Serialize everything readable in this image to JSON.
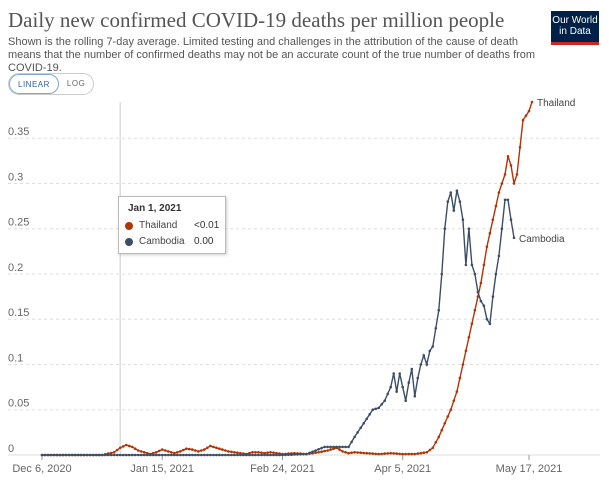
{
  "header": {
    "title": "Daily new confirmed COVID-19 deaths per million people",
    "subtitle": "Shown is the rolling 7-day average. Limited testing and challenges in the attribution of the cause of death means that the number of confirmed deaths may not be an accurate count of the true number of deaths from COVID-19.",
    "logo_line1": "Our World",
    "logo_line2": "in Data"
  },
  "scale_toggle": {
    "linear": "LINEAR",
    "log": "LOG",
    "selected": "LINEAR"
  },
  "tooltip": {
    "date": "Jan 1, 2021",
    "rows": [
      {
        "name": "Thailand",
        "value": "<0.01",
        "color": "#b13507"
      },
      {
        "name": "Cambodia",
        "value": "0.00",
        "color": "#3c4e66"
      }
    ]
  },
  "chart_data": {
    "type": "line",
    "title": "Daily new confirmed COVID-19 deaths per million people",
    "ylim": [
      0,
      0.39
    ],
    "yticks": [
      0,
      0.05,
      0.1,
      0.15,
      0.2,
      0.25,
      0.3,
      0.35
    ],
    "xtick_labels": [
      "Dec 6, 2020",
      "Jan 15, 2021",
      "Feb 24, 2021",
      "Apr 5, 2021",
      "May 17, 2021"
    ],
    "xtick_days": [
      0,
      40,
      80,
      120,
      162
    ],
    "hover_day": 26,
    "grid": true,
    "series": [
      {
        "name": "Thailand",
        "color": "#b13507",
        "points": [
          [
            0,
            0
          ],
          [
            20,
            0
          ],
          [
            24,
            0.003
          ],
          [
            26,
            0.008
          ],
          [
            28,
            0.011
          ],
          [
            30,
            0.009
          ],
          [
            32,
            0.005
          ],
          [
            34,
            0.003
          ],
          [
            36,
            0.001
          ],
          [
            38,
            0.003
          ],
          [
            40,
            0.006
          ],
          [
            42,
            0.004
          ],
          [
            44,
            0.002
          ],
          [
            46,
            0.004
          ],
          [
            48,
            0.007
          ],
          [
            50,
            0.006
          ],
          [
            52,
            0.004
          ],
          [
            54,
            0.006
          ],
          [
            56,
            0.01
          ],
          [
            58,
            0.008
          ],
          [
            60,
            0.006
          ],
          [
            62,
            0.004
          ],
          [
            64,
            0.003
          ],
          [
            66,
            0.002
          ],
          [
            68,
            0.001
          ],
          [
            70,
            0.003
          ],
          [
            72,
            0.003
          ],
          [
            74,
            0.002
          ],
          [
            76,
            0.003
          ],
          [
            78,
            0.002
          ],
          [
            80,
            0.001
          ],
          [
            84,
            0.002
          ],
          [
            88,
            0.001
          ],
          [
            92,
            0.003
          ],
          [
            95,
            0.005
          ],
          [
            98,
            0.008
          ],
          [
            100,
            0.004
          ],
          [
            102,
            0.002
          ],
          [
            104,
            0.003
          ],
          [
            108,
            0.002
          ],
          [
            112,
            0.001
          ],
          [
            116,
            0.002
          ],
          [
            120,
            0.001
          ],
          [
            124,
            0.001
          ],
          [
            128,
            0.003
          ],
          [
            130,
            0.008
          ],
          [
            132,
            0.02
          ],
          [
            134,
            0.035
          ],
          [
            136,
            0.05
          ],
          [
            138,
            0.07
          ],
          [
            140,
            0.1
          ],
          [
            142,
            0.13
          ],
          [
            144,
            0.16
          ],
          [
            146,
            0.19
          ],
          [
            148,
            0.23
          ],
          [
            150,
            0.26
          ],
          [
            152,
            0.29
          ],
          [
            154,
            0.31
          ],
          [
            155,
            0.33
          ],
          [
            156,
            0.32
          ],
          [
            157,
            0.3
          ],
          [
            158,
            0.31
          ],
          [
            159,
            0.34
          ],
          [
            160,
            0.37
          ],
          [
            161,
            0.375
          ],
          [
            162,
            0.38
          ],
          [
            163,
            0.39
          ]
        ]
      },
      {
        "name": "Cambodia",
        "color": "#3c4e66",
        "points": [
          [
            0,
            0
          ],
          [
            80,
            0
          ],
          [
            88,
            0.001
          ],
          [
            94,
            0.009
          ],
          [
            100,
            0.009
          ],
          [
            102,
            0.009
          ],
          [
            104,
            0.02
          ],
          [
            106,
            0.03
          ],
          [
            108,
            0.04
          ],
          [
            110,
            0.05
          ],
          [
            112,
            0.052
          ],
          [
            114,
            0.06
          ],
          [
            116,
            0.075
          ],
          [
            117,
            0.09
          ],
          [
            118,
            0.07
          ],
          [
            119,
            0.09
          ],
          [
            120,
            0.075
          ],
          [
            121,
            0.06
          ],
          [
            122,
            0.08
          ],
          [
            123,
            0.095
          ],
          [
            124,
            0.065
          ],
          [
            125,
            0.085
          ],
          [
            126,
            0.1
          ],
          [
            127,
            0.11
          ],
          [
            128,
            0.1
          ],
          [
            129,
            0.115
          ],
          [
            130,
            0.12
          ],
          [
            131,
            0.14
          ],
          [
            132,
            0.16
          ],
          [
            133,
            0.2
          ],
          [
            134,
            0.25
          ],
          [
            135,
            0.28
          ],
          [
            136,
            0.29
          ],
          [
            137,
            0.27
          ],
          [
            138,
            0.292
          ],
          [
            139,
            0.28
          ],
          [
            140,
            0.26
          ],
          [
            141,
            0.21
          ],
          [
            142,
            0.25
          ],
          [
            143,
            0.21
          ],
          [
            144,
            0.2
          ],
          [
            145,
            0.18
          ],
          [
            146,
            0.17
          ],
          [
            147,
            0.165
          ],
          [
            148,
            0.15
          ],
          [
            149,
            0.145
          ],
          [
            150,
            0.175
          ],
          [
            151,
            0.2
          ],
          [
            152,
            0.22
          ],
          [
            153,
            0.25
          ],
          [
            154,
            0.282
          ],
          [
            155,
            0.282
          ],
          [
            156,
            0.26
          ],
          [
            157,
            0.24
          ]
        ]
      }
    ]
  }
}
